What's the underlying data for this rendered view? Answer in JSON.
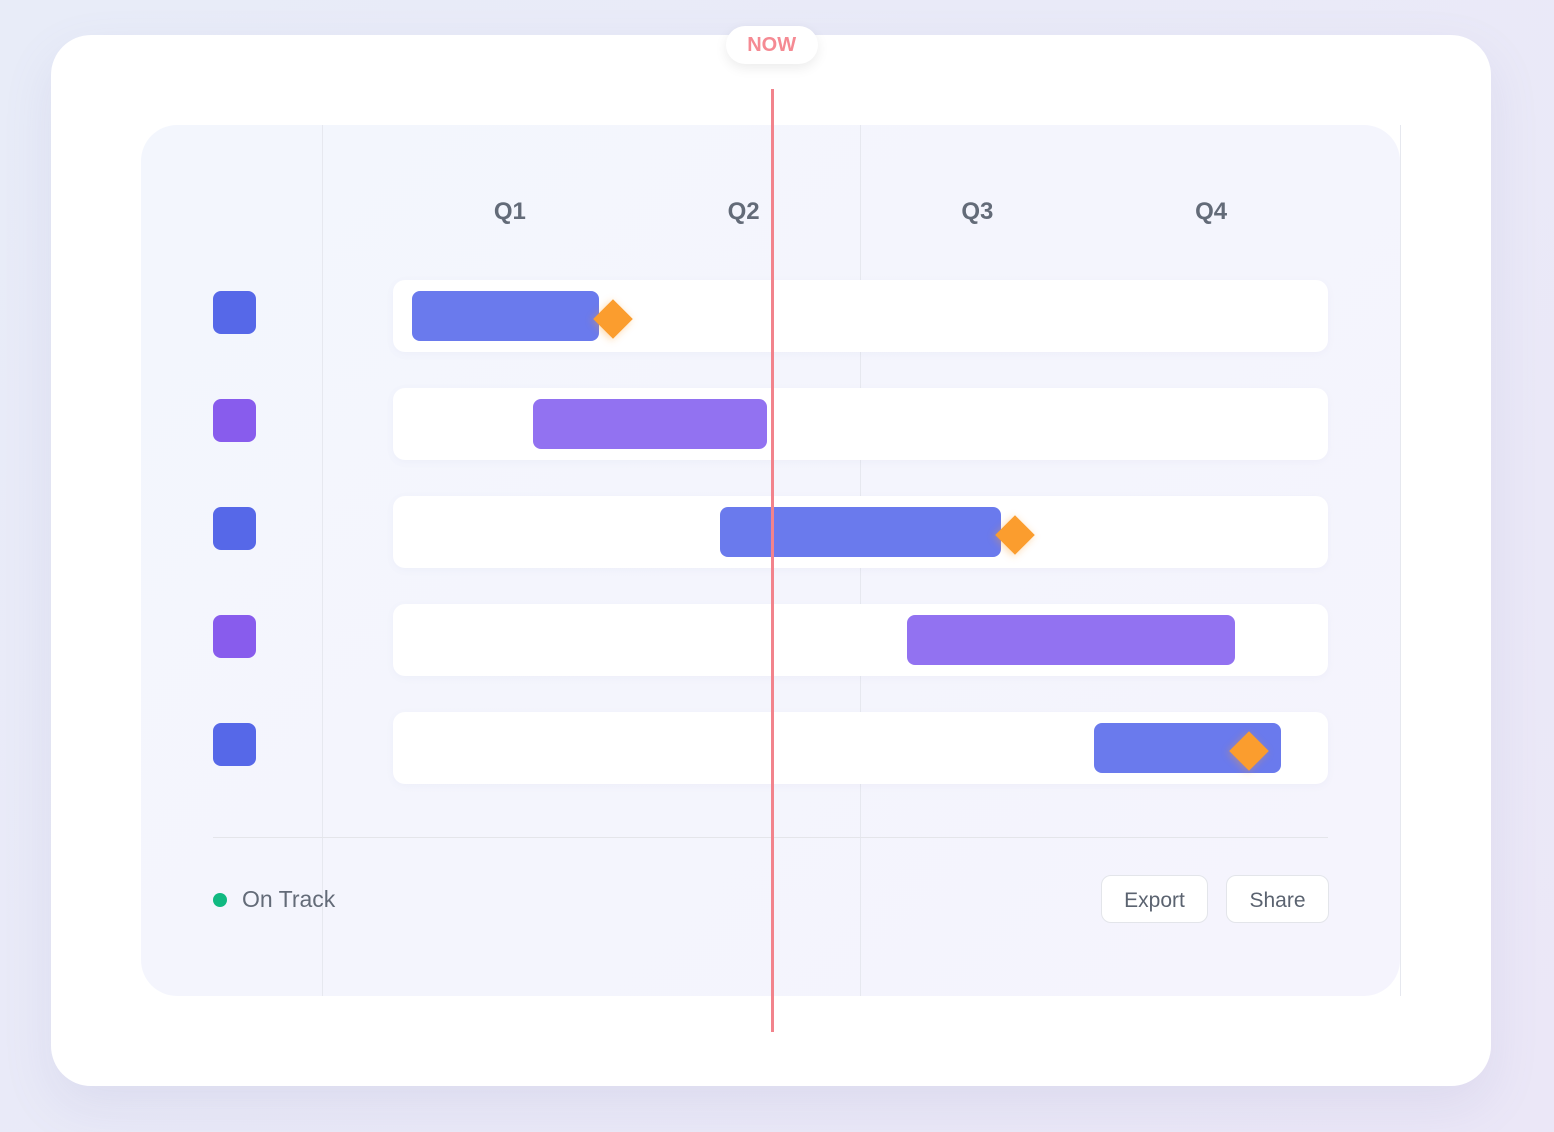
{
  "chart_data": {
    "type": "gantt",
    "categories": [
      "Q1",
      "Q2",
      "Q3",
      "Q4"
    ],
    "now_label": "NOW",
    "now_position": 0.405,
    "tasks": [
      {
        "start": 0.02,
        "end": 0.22,
        "color": "#6a7aed",
        "chip_color": "#5668e8",
        "milestone": 0.235
      },
      {
        "start": 0.15,
        "end": 0.4,
        "color": "#9272f1",
        "chip_color": "#885ced",
        "milestone": null
      },
      {
        "start": 0.35,
        "end": 0.65,
        "color": "#6a7aed",
        "chip_color": "#5668e8",
        "milestone": 0.665
      },
      {
        "start": 0.55,
        "end": 0.9,
        "color": "#9272f1",
        "chip_color": "#885ced",
        "milestone": null
      },
      {
        "start": 0.75,
        "end": 0.95,
        "color": "#6a7aed",
        "chip_color": "#5668e8",
        "milestone": 0.915
      }
    ],
    "legend": [
      {
        "label": "On Track",
        "color": "#10b981"
      }
    ],
    "milestone_color": "#fb9d2e",
    "now_color": "#f2838c"
  },
  "actions": {
    "export_label": "Export",
    "share_label": "Share"
  }
}
